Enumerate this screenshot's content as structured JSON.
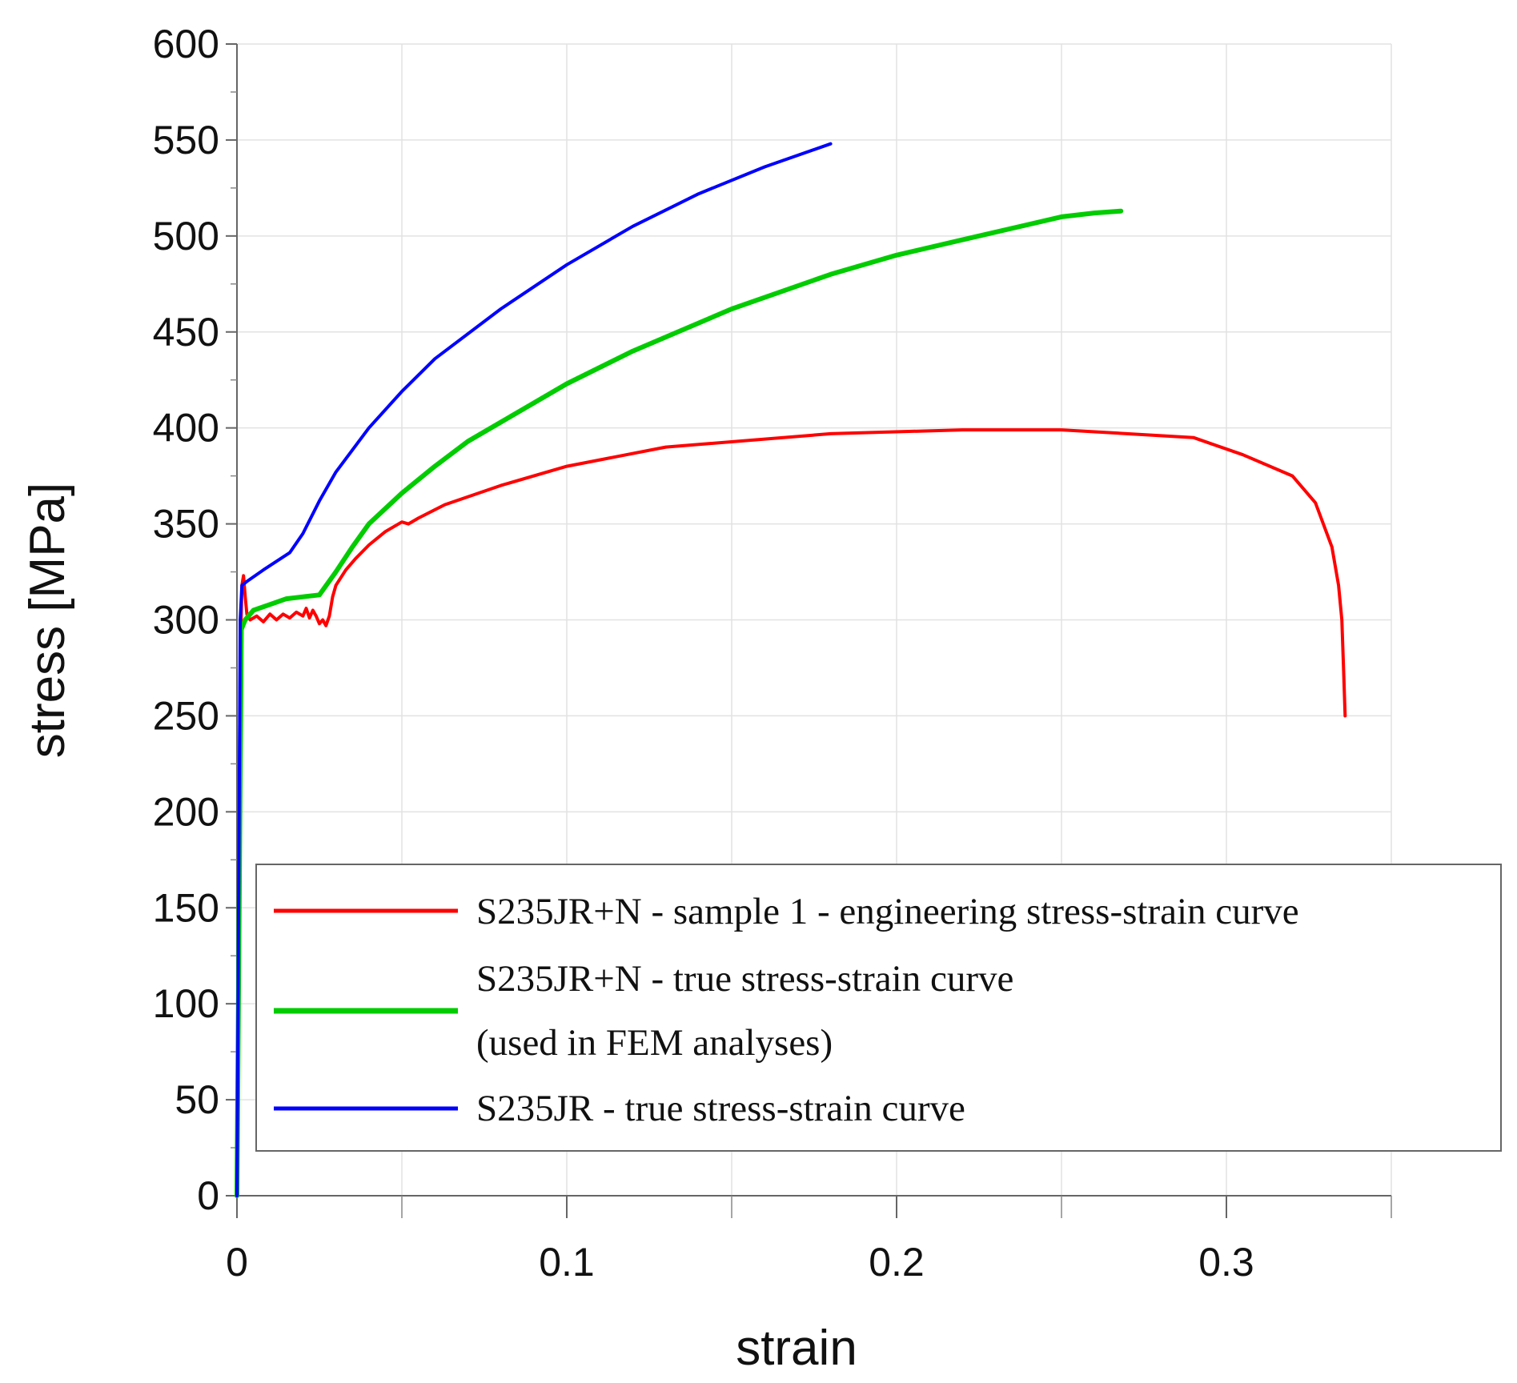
{
  "chart_data": {
    "type": "line",
    "xlabel": "strain",
    "ylabel": "stress [MPa]",
    "xlim": [
      0,
      0.35
    ],
    "ylim": [
      0,
      600
    ],
    "xticks": [
      0,
      0.1,
      0.2,
      0.3
    ],
    "xtick_labels": [
      "0",
      "0.1",
      "0.2",
      "0.3"
    ],
    "yticks": [
      0,
      50,
      100,
      150,
      200,
      250,
      300,
      350,
      400,
      450,
      500,
      550,
      600
    ],
    "ytick_labels": [
      "0",
      "50",
      "100",
      "150",
      "200",
      "250",
      "300",
      "350",
      "400",
      "450",
      "500",
      "550",
      "600"
    ],
    "grid": true,
    "legend_position": "bottom-right",
    "series": [
      {
        "name": "S235JR+N - sample 1 - engineering stress-strain curve",
        "color": "#ff0000",
        "width": 4,
        "x": [
          0,
          0.0012,
          0.0015,
          0.002,
          0.0025,
          0.003,
          0.004,
          0.006,
          0.008,
          0.01,
          0.012,
          0.014,
          0.016,
          0.018,
          0.02,
          0.021,
          0.022,
          0.023,
          0.024,
          0.025,
          0.026,
          0.027,
          0.028,
          0.029,
          0.03,
          0.033,
          0.036,
          0.04,
          0.045,
          0.05,
          0.052,
          0.055,
          0.063,
          0.08,
          0.1,
          0.13,
          0.18,
          0.22,
          0.25,
          0.29,
          0.305,
          0.32,
          0.327,
          0.332,
          0.334,
          0.335,
          0.3355,
          0.336
        ],
        "y": [
          0,
          295,
          318,
          323,
          312,
          303,
          300,
          302,
          299,
          303,
          300,
          303,
          301,
          304,
          302,
          306,
          301,
          305,
          302,
          298,
          300,
          297,
          302,
          312,
          318,
          326,
          332,
          339,
          346,
          351,
          350,
          353,
          360,
          370,
          380,
          390,
          397,
          399,
          399,
          395,
          386,
          375,
          361,
          338,
          318,
          300,
          275,
          250
        ]
      },
      {
        "name": "S235JR+N - true stress-strain curve",
        "name_line2": "(used in FEM analyses)",
        "color": "#00cc00",
        "width": 6,
        "x": [
          0,
          0.0013,
          0.0025,
          0.005,
          0.01,
          0.015,
          0.02,
          0.025,
          0.03,
          0.035,
          0.04,
          0.05,
          0.06,
          0.07,
          0.08,
          0.1,
          0.12,
          0.15,
          0.18,
          0.2,
          0.22,
          0.25,
          0.26,
          0.268
        ],
        "y": [
          0,
          295,
          300,
          305,
          308,
          311,
          312,
          313,
          325,
          338,
          350,
          366,
          380,
          393,
          403,
          423,
          440,
          462,
          480,
          490,
          498,
          510,
          512,
          513
        ]
      },
      {
        "name": "S235JR - true stress-strain curve",
        "color": "#0000ff",
        "width": 4,
        "x": [
          0,
          0.001,
          0.0015,
          0.003,
          0.008,
          0.016,
          0.02,
          0.025,
          0.03,
          0.04,
          0.05,
          0.06,
          0.08,
          0.1,
          0.12,
          0.14,
          0.16,
          0.18
        ],
        "y": [
          0,
          300,
          318,
          320,
          326,
          335,
          345,
          362,
          377,
          400,
          419,
          436,
          462,
          485,
          505,
          522,
          536,
          548
        ]
      }
    ]
  }
}
